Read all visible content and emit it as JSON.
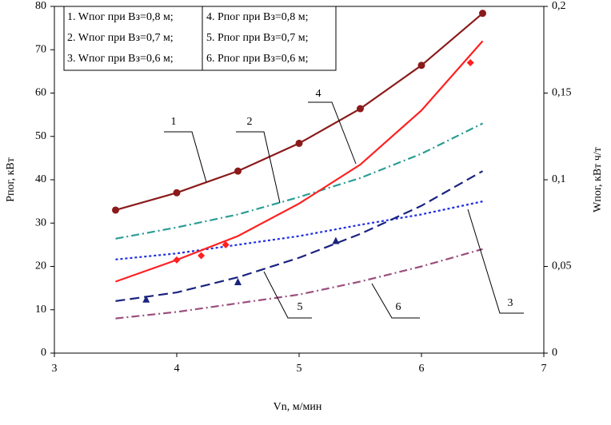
{
  "chart_data": {
    "type": "line",
    "xlabel": "Vn, м/мин",
    "ylabel": "Pпог, кВт",
    "y2label": "Wпог, кВт ч/т",
    "x": [
      3.5,
      4,
      4.5,
      5,
      5.5,
      6,
      6.5
    ],
    "xlim": [
      3,
      7
    ],
    "xticks": [
      3,
      4,
      5,
      6,
      7
    ],
    "ylim": [
      0,
      80
    ],
    "yticks": [
      0,
      10,
      20,
      30,
      40,
      50,
      60,
      70,
      80
    ],
    "y2lim": [
      0,
      0.2
    ],
    "y2ticks": [
      0,
      {
        "value": 0.05,
        "label": "0,05"
      },
      {
        "value": 0.1,
        "label": "0,1"
      },
      {
        "value": 0.15,
        "label": "0,15"
      },
      {
        "value": 0.2,
        "label": "0,2"
      }
    ],
    "series": [
      {
        "name": "1. Wпог при Вз=0,8 м;",
        "color": "#8b1a1a",
        "axis": "y2",
        "dash": "solid",
        "marker": "circle",
        "values": [
          0.0825,
          0.0925,
          0.105,
          0.121,
          0.141,
          0.166,
          0.196
        ]
      },
      {
        "name": "2. Wпог при Вз=0,7 м;",
        "color": "#2a9d94",
        "axis": "y2",
        "dash": "dashdot",
        "values": [
          0.066,
          0.0725,
          0.08,
          0.09,
          0.101,
          0.115,
          0.1325
        ]
      },
      {
        "name": "3. Wпог при Вз=0,6 м;",
        "color": "#1f2fe0",
        "axis": "y2",
        "dash": "dotted",
        "values": [
          0.054,
          0.0575,
          0.0625,
          0.0675,
          0.074,
          0.08,
          0.0875
        ]
      },
      {
        "name": "4. Pпог при Вз=0,8 м;",
        "color": "#ff2020",
        "dash": "solid",
        "values": [
          16.5,
          21.5,
          27,
          34.5,
          43.5,
          56,
          72
        ],
        "points": {
          "marker": "diamond",
          "x": [
            4,
            4.2,
            4.4,
            6.4
          ],
          "values": [
            21.5,
            22.5,
            25,
            67
          ]
        }
      },
      {
        "name": "5. Pпог при Вз=0,7 м;",
        "color": "#1a237e",
        "dash": "dashed",
        "values": [
          12,
          14,
          17.5,
          22,
          27.5,
          34,
          42
        ],
        "points": {
          "marker": "triangle",
          "x": [
            3.75,
            4.5,
            5.3
          ],
          "values": [
            12.5,
            16.5,
            26
          ]
        }
      },
      {
        "name": "6. Pпог при Вз=0,6 м;",
        "color": "#9b4f7e",
        "dash": "dashdot",
        "values": [
          8,
          9.5,
          11.5,
          13.5,
          16.5,
          20,
          24
        ]
      }
    ],
    "annotations": [
      "1",
      "2",
      "3",
      "4",
      "5",
      "6"
    ]
  }
}
